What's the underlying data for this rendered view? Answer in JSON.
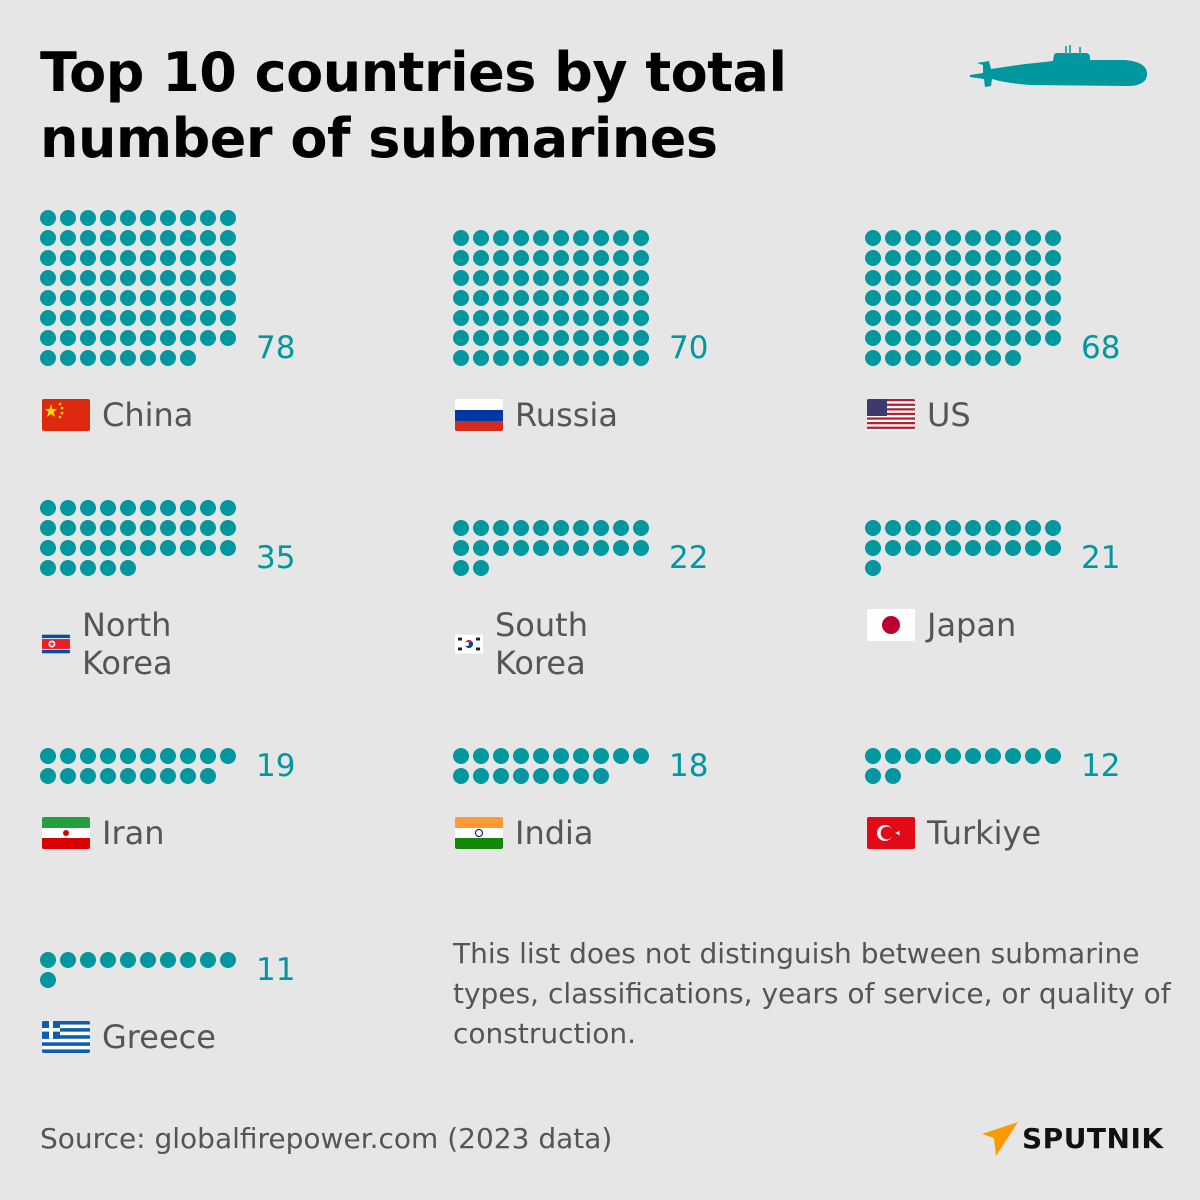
{
  "title_lines": [
    "Top 10 countries by total",
    "number of submarines"
  ],
  "accent_color": "#00979f",
  "chart_data": {
    "type": "pictogram",
    "title": "Top 10 countries by total number of submarines",
    "units_per_dot": 1,
    "dots_per_row": 10,
    "categories": [
      "China",
      "Russia",
      "US",
      "North Korea",
      "South Korea",
      "Japan",
      "Iran",
      "India",
      "Turkiye",
      "Greece"
    ],
    "values": [
      78,
      70,
      68,
      35,
      22,
      21,
      19,
      18,
      12,
      11
    ],
    "flags": [
      "flag-china-icon",
      "flag-russia-icon",
      "flag-us-icon",
      "flag-north-korea-icon",
      "flag-south-korea-icon",
      "flag-japan-icon",
      "flag-iran-icon",
      "flag-india-icon",
      "flag-turkiye-icon",
      "flag-greece-icon"
    ]
  },
  "labels": {
    "values": [
      "78",
      "70",
      "68",
      "35",
      "22",
      "21",
      "19",
      "18",
      "12",
      "11"
    ]
  },
  "note": "This list does not distinguish between submarine types, classifications, years of service, or quality of construction.",
  "source": "Source: globalfirepower.com (2023 data)",
  "logo": {
    "text": "SPUTNIK",
    "icon": "sputnik-arrow-icon",
    "color": "#ff9900"
  },
  "header_icon": "submarine-icon"
}
